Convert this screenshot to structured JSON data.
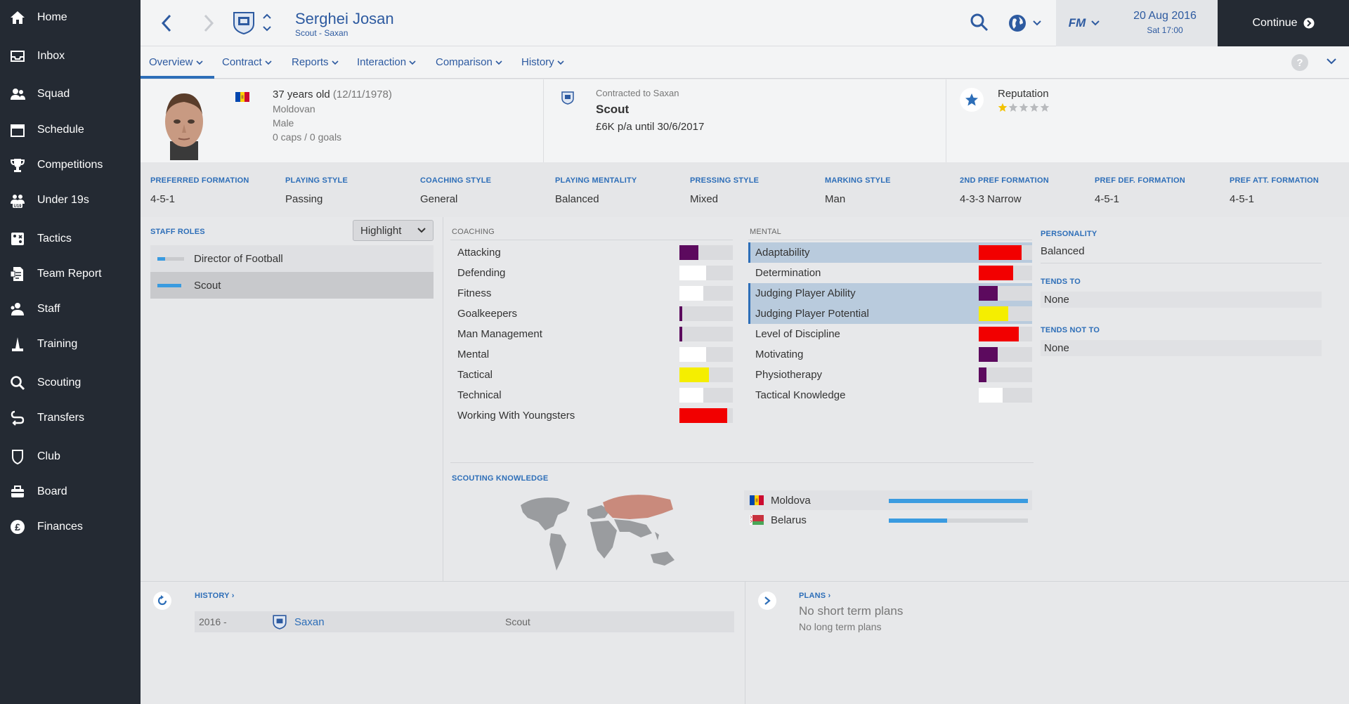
{
  "sidebar": {
    "items": [
      {
        "label": "Home",
        "icon": "home-icon"
      },
      {
        "label": "Inbox",
        "icon": "inbox-icon"
      },
      {
        "label": "Squad",
        "icon": "squad-icon"
      },
      {
        "label": "Schedule",
        "icon": "schedule-icon"
      },
      {
        "label": "Competitions",
        "icon": "trophy-icon"
      },
      {
        "label": "Under 19s",
        "icon": "under19-icon",
        "badge": "U19"
      },
      {
        "label": "Tactics",
        "icon": "tactics-icon"
      },
      {
        "label": "Team Report",
        "icon": "team-report-icon"
      },
      {
        "label": "Staff",
        "icon": "staff-icon"
      },
      {
        "label": "Training",
        "icon": "training-icon"
      },
      {
        "label": "Scouting",
        "icon": "scouting-icon"
      },
      {
        "label": "Transfers",
        "icon": "transfers-icon"
      },
      {
        "label": "Club",
        "icon": "club-icon"
      },
      {
        "label": "Board",
        "icon": "board-icon"
      },
      {
        "label": "Finances",
        "icon": "finances-icon",
        "glyph": "£"
      }
    ]
  },
  "header": {
    "name": "Serghei Josan",
    "subtitle": "Scout - Saxan",
    "date": "20 Aug 2016",
    "time": "Sat 17:00",
    "continue_label": "Continue",
    "fm_label": "FM"
  },
  "tabs": [
    "Overview",
    "Contract",
    "Reports",
    "Interaction",
    "Comparison",
    "History"
  ],
  "profile": {
    "age_line": "37 years old",
    "dob": "(12/11/1978)",
    "nationality": "Moldovan",
    "gender": "Male",
    "caps": "0 caps / 0 goals",
    "contract_label": "Contracted to Saxan",
    "role": "Scout",
    "wage": "£6K p/a until 30/6/2017",
    "reputation_label": "Reputation",
    "reputation_stars": 1,
    "reputation_max": 5
  },
  "styles": [
    {
      "label": "PREFERRED FORMATION",
      "value": "4-5-1"
    },
    {
      "label": "PLAYING STYLE",
      "value": "Passing"
    },
    {
      "label": "COACHING STYLE",
      "value": "General"
    },
    {
      "label": "PLAYING MENTALITY",
      "value": "Balanced"
    },
    {
      "label": "PRESSING STYLE",
      "value": "Mixed"
    },
    {
      "label": "MARKING STYLE",
      "value": "Man"
    },
    {
      "label": "2ND PREF FORMATION",
      "value": "4-3-3 Narrow"
    },
    {
      "label": "PREF DEF. FORMATION",
      "value": "4-5-1"
    },
    {
      "label": "PREF ATT. FORMATION",
      "value": "4-5-1"
    }
  ],
  "staff_roles": {
    "title": "STAFF ROLES",
    "highlight_label": "Highlight",
    "roles": [
      {
        "label": "Director of Football",
        "level": 0.3,
        "selected": false
      },
      {
        "label": "Scout",
        "level": 0.9,
        "selected": true
      }
    ]
  },
  "colors": {
    "purple": "#5c0a5e",
    "white": "#ffffff",
    "yellow": "#f5ee00",
    "red": "#f20000",
    "accent": "#2d6eb8",
    "sidebar": "#242a33"
  },
  "coaching": {
    "title": "COACHING",
    "attributes": [
      {
        "label": "Attacking",
        "fraction": 0.35,
        "color": "purple"
      },
      {
        "label": "Defending",
        "fraction": 0.5,
        "color": "white"
      },
      {
        "label": "Fitness",
        "fraction": 0.45,
        "color": "white"
      },
      {
        "label": "Goalkeepers",
        "fraction": 0.05,
        "color": "purple"
      },
      {
        "label": "Man Management",
        "fraction": 0.05,
        "color": "purple"
      },
      {
        "label": "Mental",
        "fraction": 0.5,
        "color": "white"
      },
      {
        "label": "Tactical",
        "fraction": 0.55,
        "color": "yellow"
      },
      {
        "label": "Technical",
        "fraction": 0.45,
        "color": "white"
      },
      {
        "label": "Working With Youngsters",
        "fraction": 0.9,
        "color": "red"
      }
    ]
  },
  "mental": {
    "title": "MENTAL",
    "attributes": [
      {
        "label": "Adaptability",
        "fraction": 0.8,
        "color": "red",
        "highlighted": true
      },
      {
        "label": "Determination",
        "fraction": 0.65,
        "color": "red",
        "highlighted": false
      },
      {
        "label": "Judging Player Ability",
        "fraction": 0.35,
        "color": "purple",
        "highlighted": true
      },
      {
        "label": "Judging Player Potential",
        "fraction": 0.55,
        "color": "yellow",
        "highlighted": true
      },
      {
        "label": "Level of Discipline",
        "fraction": 0.75,
        "color": "red",
        "highlighted": false
      },
      {
        "label": "Motivating",
        "fraction": 0.35,
        "color": "purple",
        "highlighted": false
      },
      {
        "label": "Physiotherapy",
        "fraction": 0.15,
        "color": "purple",
        "highlighted": false
      },
      {
        "label": "Tactical Knowledge",
        "fraction": 0.45,
        "color": "white",
        "highlighted": false
      }
    ]
  },
  "personality": {
    "title": "PERSONALITY",
    "value": "Balanced",
    "tends_to_title": "TENDS TO",
    "tends_to": "None",
    "tends_not_to_title": "TENDS NOT TO",
    "tends_not_to": "None"
  },
  "scouting": {
    "title": "SCOUTING KNOWLEDGE",
    "countries": [
      {
        "name": "Moldova",
        "knowledge": 1.0
      },
      {
        "name": "Belarus",
        "knowledge": 0.42
      }
    ]
  },
  "history": {
    "title": "HISTORY",
    "rows": [
      {
        "years": "2016 -",
        "club": "Saxan",
        "role": "Scout"
      }
    ]
  },
  "plans": {
    "title": "PLANS",
    "short": "No short term plans",
    "long": "No long term plans"
  }
}
